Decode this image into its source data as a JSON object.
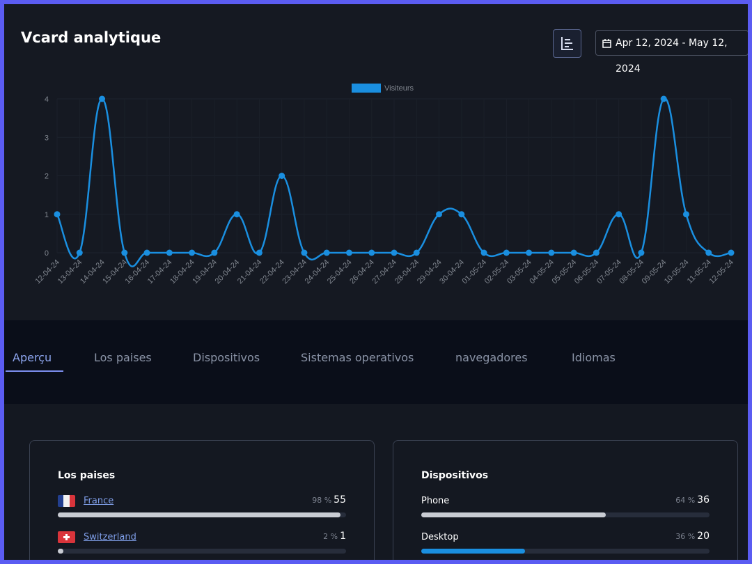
{
  "header": {
    "title": "Vcard analytique",
    "date_range": "Apr 12, 2024 - May 12, 2024"
  },
  "chart_data": {
    "type": "line",
    "categories": [
      "12-04-24",
      "13-04-24",
      "14-04-24",
      "15-04-24",
      "16-04-24",
      "17-04-24",
      "18-04-24",
      "19-04-24",
      "20-04-24",
      "21-04-24",
      "22-04-24",
      "23-04-24",
      "24-04-24",
      "25-04-24",
      "26-04-24",
      "27-04-24",
      "28-04-24",
      "29-04-24",
      "30-04-24",
      "01-05-24",
      "02-05-24",
      "03-05-24",
      "04-05-24",
      "05-05-24",
      "06-05-24",
      "07-05-24",
      "08-05-24",
      "09-05-24",
      "10-05-24",
      "11-05-24",
      "12-05-24"
    ],
    "series": [
      {
        "name": "Visiteurs",
        "color": "#1a8fe0",
        "values": [
          1,
          0,
          4,
          0,
          0,
          0,
          0,
          0,
          1,
          0,
          2,
          0,
          0,
          0,
          0,
          0,
          0,
          1,
          1,
          0,
          0,
          0,
          0,
          0,
          0,
          1,
          0,
          4,
          1,
          0,
          0
        ]
      }
    ],
    "ylim": [
      0,
      4
    ],
    "yticks": [
      0,
      1,
      2,
      3,
      4
    ],
    "grid": true,
    "legend": "top"
  },
  "tabs": [
    "Aperçu",
    "Los paises",
    "Dispositivos",
    "Sistemas operativos",
    "navegadores",
    "Idiomas"
  ],
  "cards": [
    {
      "title": "Los paises",
      "rows": [
        {
          "label": "France",
          "percent": 98,
          "percent_label": "98 %",
          "count": 55
        },
        {
          "label": "Switzerland",
          "percent": 2,
          "percent_label": "2 %",
          "count": 1
        }
      ]
    },
    {
      "title": "Dispositivos",
      "rows": [
        {
          "label": "Phone",
          "percent": 64,
          "percent_label": "64 %",
          "count": 36
        },
        {
          "label": "Desktop",
          "percent": 36,
          "percent_label": "36 %",
          "count": 20
        }
      ]
    }
  ]
}
